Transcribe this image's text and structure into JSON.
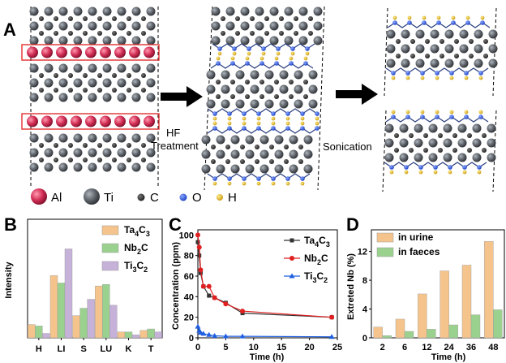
{
  "panel_labels": {
    "a": "A",
    "b": "B",
    "c": "C",
    "d": "D"
  },
  "steps": {
    "hf_line1": "HF",
    "hf_line2": "Treatment",
    "sonication": "Sonication"
  },
  "atom_legend": [
    {
      "symbol": "Al",
      "color": "#d6325a"
    },
    {
      "symbol": "Ti",
      "color": "#5c6066"
    },
    {
      "symbol": "C",
      "color": "#333333"
    },
    {
      "symbol": "O",
      "color": "#2a4fd4"
    },
    {
      "symbol": "H",
      "color": "#e0b92a"
    }
  ],
  "panel_b": {
    "ylabel": "Intensity",
    "legend_html": [
      {
        "base": "Ta",
        "sub1": "4",
        "mid": "C",
        "sub2": "3"
      },
      {
        "base": "Nb",
        "sub1": "2",
        "mid": "C",
        "sub2": ""
      },
      {
        "base": "Ti",
        "sub1": "3",
        "mid": "C",
        "sub2": "2"
      }
    ]
  },
  "panel_c": {
    "ylabel": "Concentration (ppm)",
    "xlabel": "Time (h)",
    "legend_html": [
      {
        "base": "Ta",
        "sub1": "4",
        "mid": "C",
        "sub2": "3"
      },
      {
        "base": "Nb",
        "sub1": "2",
        "mid": "C",
        "sub2": ""
      },
      {
        "base": "Ti",
        "sub1": "3",
        "mid": "C",
        "sub2": "2"
      }
    ]
  },
  "panel_d": {
    "ylabel": "Extreted Nb (%)",
    "xlabel": "Time (h)"
  },
  "chart_data": [
    {
      "type": "bar",
      "categories": [
        "H",
        "LI",
        "S",
        "LU",
        "K",
        "T"
      ],
      "series": [
        {
          "name": "Ta4C3",
          "color": "#f5c48c",
          "values": [
            4.5,
            21,
            7.5,
            17.5,
            2,
            2.5
          ]
        },
        {
          "name": "Nb2C",
          "color": "#9bd18f",
          "values": [
            4,
            18.5,
            10,
            18,
            2,
            3
          ]
        },
        {
          "name": "Ti3C2",
          "color": "#c6b1d9",
          "values": [
            1.5,
            30,
            13,
            11,
            1,
            2
          ]
        }
      ],
      "ylabel": "Intensity",
      "ylim": [
        0,
        40
      ]
    },
    {
      "type": "line",
      "x_ticks": [
        0,
        5,
        10,
        15,
        20,
        25
      ],
      "y_ticks": [
        0,
        20,
        40,
        60,
        80,
        100
      ],
      "xlim": [
        0,
        25
      ],
      "ylim": [
        0,
        105
      ],
      "xlabel": "Time (h)",
      "ylabel": "Concentration (ppm)",
      "series": [
        {
          "name": "Ta4C3",
          "color": "#333333",
          "marker": "square",
          "x": [
            0,
            0.25,
            0.5,
            1,
            2,
            3,
            5,
            8,
            24
          ],
          "y": [
            93,
            80,
            63,
            50,
            41,
            39,
            34,
            24,
            20
          ]
        },
        {
          "name": "Nb2C",
          "color": "#e02020",
          "marker": "circle",
          "x": [
            0,
            0.25,
            0.5,
            1,
            2,
            3,
            5,
            8,
            24
          ],
          "y": [
            100,
            88,
            66,
            50,
            50,
            39,
            33,
            26,
            20
          ]
        },
        {
          "name": "Ti3C2",
          "color": "#1f5fe0",
          "marker": "triangle",
          "x": [
            0,
            0.25,
            0.5,
            1,
            2,
            3,
            5,
            8,
            24
          ],
          "y": [
            11,
            7,
            5,
            4,
            3,
            2,
            1.5,
            1.5,
            1
          ]
        }
      ]
    },
    {
      "type": "bar",
      "categories": [
        "2",
        "6",
        "12",
        "24",
        "36",
        "48"
      ],
      "x_ticks": [
        "2",
        "6",
        "12",
        "24",
        "36",
        "48"
      ],
      "y_ticks": [
        0,
        4,
        8,
        12
      ],
      "ylim": [
        0,
        15
      ],
      "xlabel": "Time (h)",
      "ylabel": "Extreted Nb (%)",
      "series": [
        {
          "name": "in urine",
          "color": "#f5c48c",
          "values": [
            1.5,
            2.6,
            6.1,
            9.3,
            10.1,
            13.4
          ]
        },
        {
          "name": "in faeces",
          "color": "#9bd18f",
          "values": [
            0.3,
            0.9,
            1.2,
            1.8,
            3.2,
            3.9
          ]
        }
      ]
    }
  ]
}
